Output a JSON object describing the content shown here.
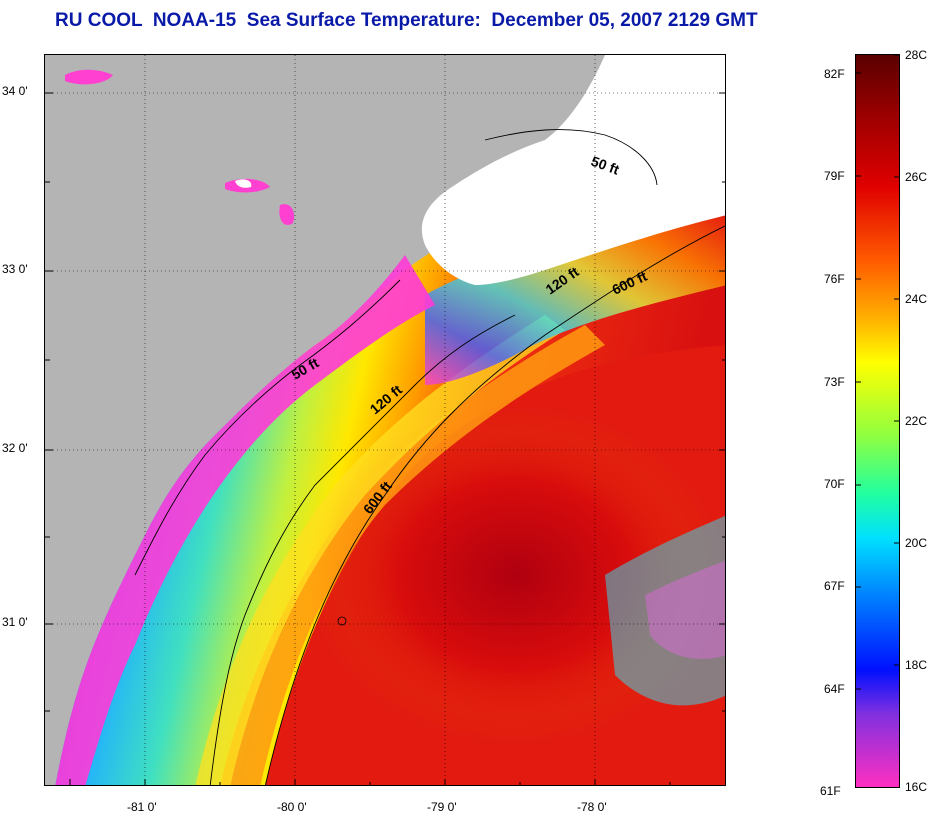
{
  "title": "RU COOL  NOAA-15  Sea Surface Temperature:  December 05, 2007 2129 GMT",
  "map": {
    "lat_labels": [
      "34 0'",
      "33 0'",
      "32 0'",
      "31 0'"
    ],
    "lon_labels": [
      "-81 0'",
      "-80 0'",
      "-79 0'",
      "-78 0'"
    ],
    "contours": [
      {
        "label": "50 ft",
        "depth_ft": 50
      },
      {
        "label": "50 ft",
        "depth_ft": 50
      },
      {
        "label": "120 ft",
        "depth_ft": 120
      },
      {
        "label": "120 ft",
        "depth_ft": 120
      },
      {
        "label": "600 ft",
        "depth_ft": 600
      },
      {
        "label": "600 ft",
        "depth_ft": 600
      }
    ],
    "land_color": "#b4b4b4"
  },
  "colorbar": {
    "fahrenheit_labels": [
      "82F",
      "79F",
      "76F",
      "73F",
      "70F",
      "67F",
      "64F",
      "61F"
    ],
    "celsius_labels": [
      "28C",
      "26C",
      "24C",
      "22C",
      "20C",
      "18C",
      "16C"
    ]
  }
}
